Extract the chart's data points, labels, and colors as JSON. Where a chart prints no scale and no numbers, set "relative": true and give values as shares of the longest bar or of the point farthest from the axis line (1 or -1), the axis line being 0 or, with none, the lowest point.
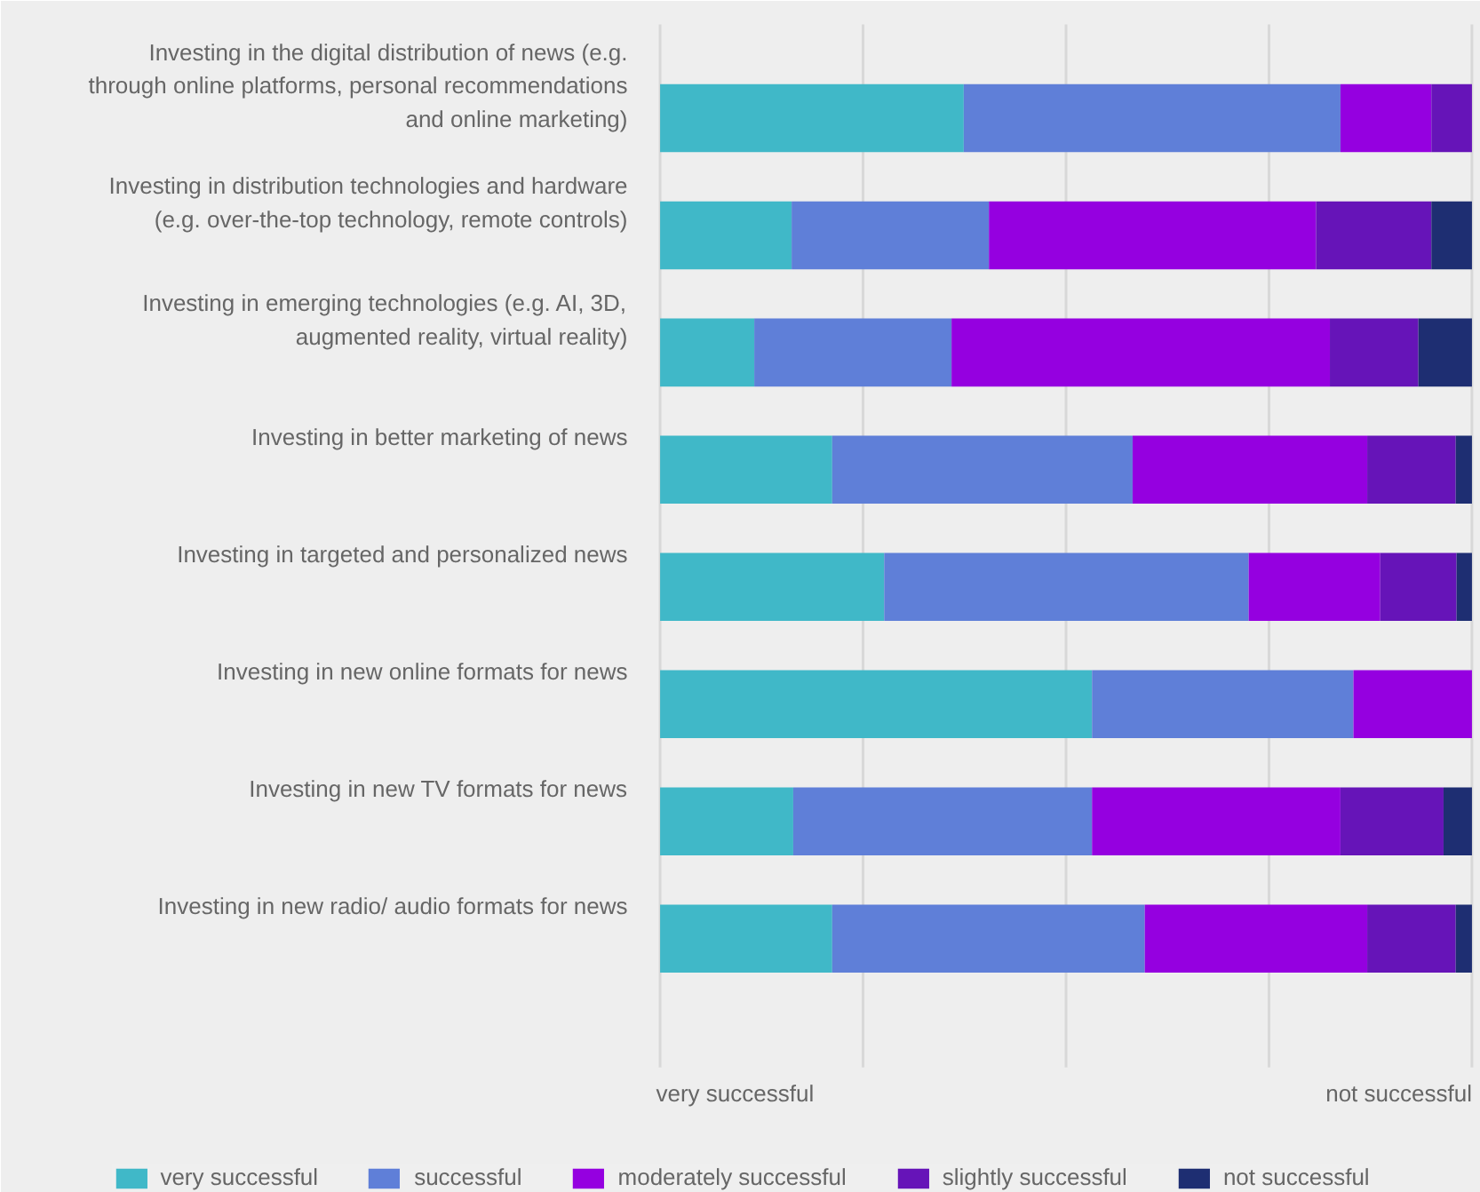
{
  "chart_data": {
    "type": "bar",
    "orientation": "horizontal",
    "stacked": true,
    "relative": true,
    "grid": true,
    "legend": "bottom",
    "categories": [
      "Investing in the digital distribution of news (e.g. through online platforms, personal recommendations and online marketing)",
      "Investing in distribution technologies and hardware (e.g. over-the-top technology, remote controls)",
      "Investing in emerging technologies (e.g. AI, 3D, augmented reality, virtual reality)",
      "Investing in better marketing of news",
      "Investing in targeted and personalized news",
      "Investing in new online formats for news",
      "Investing in new TV formats for news",
      "Investing in new radio/ audio formats for news"
    ],
    "series": [
      {
        "name": "very successful",
        "color": "#40b8c8",
        "values": [
          0.374,
          0.162,
          0.116,
          0.212,
          0.276,
          0.532,
          0.164,
          0.212
        ]
      },
      {
        "name": "successful",
        "color": "#5f7fd8",
        "values": [
          0.464,
          0.243,
          0.243,
          0.37,
          0.449,
          0.322,
          0.368,
          0.385
        ]
      },
      {
        "name": "moderately successful",
        "color": "#9500e0",
        "values": [
          0.112,
          0.403,
          0.466,
          0.289,
          0.162,
          0.146,
          0.306,
          0.274
        ]
      },
      {
        "name": "slightly successful",
        "color": "#6614b8",
        "values": [
          0.05,
          0.142,
          0.109,
          0.109,
          0.094,
          0,
          0.127,
          0.109
        ]
      },
      {
        "name": "not successful",
        "color": "#1e2e72",
        "values": [
          0,
          0.05,
          0.066,
          0.02,
          0.019,
          0,
          0.035,
          0.02
        ]
      }
    ],
    "annotations": [
      "very successful",
      "not successful"
    ]
  }
}
